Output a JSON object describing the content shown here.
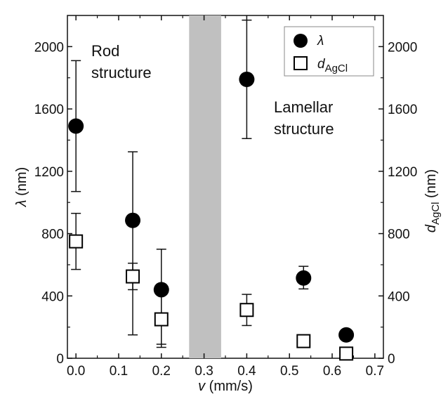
{
  "chart_data": {
    "type": "scatter",
    "x_axis": {
      "label_symbol": "v",
      "label_unit": " (mm/s)",
      "range": [
        -0.02,
        0.72
      ],
      "ticks": [
        0.0,
        0.1,
        0.2,
        0.3,
        0.4,
        0.5,
        0.6,
        0.7
      ],
      "tick_labels": [
        "0.0",
        "0.1",
        "0.2",
        "0.3",
        "0.4",
        "0.5",
        "0.6",
        "0.7"
      ]
    },
    "y_left_axis": {
      "label_symbol": "λ",
      "label_unit": " (nm)",
      "range": [
        0,
        2200
      ],
      "ticks": [
        0,
        400,
        800,
        1200,
        1600,
        2000
      ],
      "tick_labels": [
        "0",
        "400",
        "800",
        "1200",
        "1600",
        "2000"
      ]
    },
    "y_right_axis": {
      "label_symbol": "d",
      "label_subscript": "AgCl",
      "label_unit": " (nm)",
      "range": [
        0,
        2200
      ],
      "ticks": [
        0,
        400,
        800,
        1200,
        1600,
        2000
      ],
      "tick_labels": [
        "0",
        "400",
        "800",
        "1200",
        "1600",
        "2000"
      ]
    },
    "shaded_band": {
      "x_start": 0.265,
      "x_end": 0.34,
      "color": "#c0c0c0"
    },
    "annotations": {
      "rod_line1": "Rod",
      "rod_line2": "structure",
      "lamellar_line1": "Lamellar",
      "lamellar_line2": "structure"
    },
    "legend": {
      "position": "top-right"
    },
    "series": [
      {
        "name": "λ",
        "marker": "filled-circle",
        "points": [
          {
            "x": 0.0,
            "y": 1490,
            "err_low": 1070,
            "err_high": 1910
          },
          {
            "x": 0.133,
            "y": 885,
            "err_low": 150,
            "err_high": 1325
          },
          {
            "x": 0.2,
            "y": 440,
            "err_low": 70,
            "err_high": 700
          },
          {
            "x": 0.4,
            "y": 1790,
            "err_low": 1410,
            "err_high": 2170
          },
          {
            "x": 0.533,
            "y": 515,
            "err_low": 445,
            "err_high": 590
          },
          {
            "x": 0.633,
            "y": 150,
            "err_low": 140,
            "err_high": 160
          }
        ]
      },
      {
        "name": "d",
        "name_subscript": "AgCl",
        "marker": "open-square",
        "points": [
          {
            "x": 0.0,
            "y": 750,
            "err_low": 570,
            "err_high": 930
          },
          {
            "x": 0.133,
            "y": 525,
            "err_low": 440,
            "err_high": 610
          },
          {
            "x": 0.2,
            "y": 250,
            "err_low": 90,
            "err_high": 410
          },
          {
            "x": 0.4,
            "y": 310,
            "err_low": 210,
            "err_high": 410
          },
          {
            "x": 0.533,
            "y": 110,
            "err_low": 95,
            "err_high": 125
          },
          {
            "x": 0.633,
            "y": 30,
            "err_low": 20,
            "err_high": 40
          }
        ]
      }
    ]
  }
}
